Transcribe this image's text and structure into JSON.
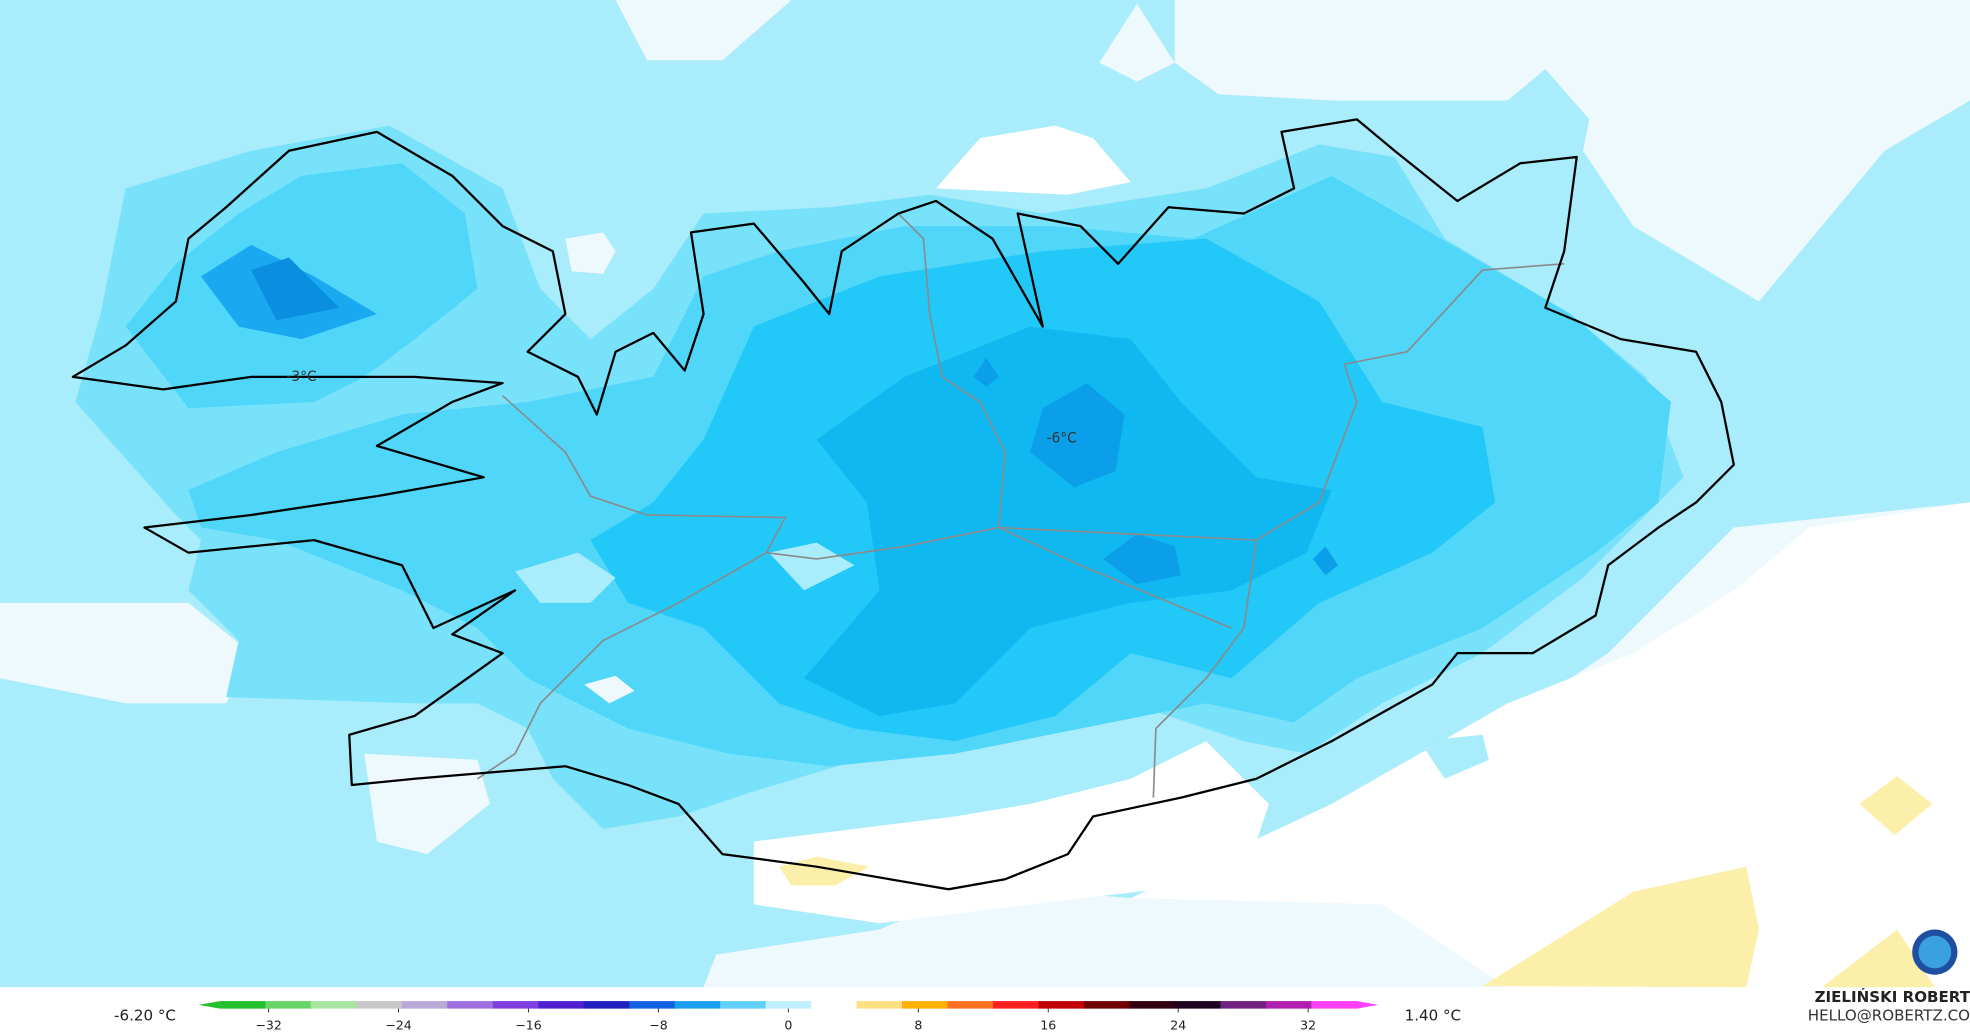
{
  "map": {
    "contour_labels": [
      "-3°C",
      "-6°C"
    ]
  },
  "colorbar": {
    "min_label": "-6.20 °C",
    "max_label": "1.40 °C",
    "range": [
      -35,
      35
    ],
    "ticks": [
      {
        "value": -32,
        "label": "−32"
      },
      {
        "value": -24,
        "label": "−24"
      },
      {
        "value": -16,
        "label": "−16"
      },
      {
        "value": -8,
        "label": "−8"
      },
      0,
      8,
      16,
      24,
      32
    ],
    "colors": [
      "#22c02a",
      "#66d466",
      "#a8e6a0",
      "#c8c8c8",
      "#b8a8d8",
      "#a070e0",
      "#8040e0",
      "#5020d0",
      "#2020c0",
      "#1060e0",
      "#1aa0f0",
      "#60d0f8",
      "#c0f0ff",
      "#ffffff",
      "#ffe080",
      "#ffb000",
      "#ff7020",
      "#ff2020",
      "#c00000",
      "#700000",
      "#300010",
      "#200020",
      "#702080",
      "#b020b0",
      "#ff40ff"
    ]
  },
  "credit": {
    "name": "ZIELIŃSKI ROBERT",
    "email": "HELLO@ROBERTZ.CO"
  }
}
